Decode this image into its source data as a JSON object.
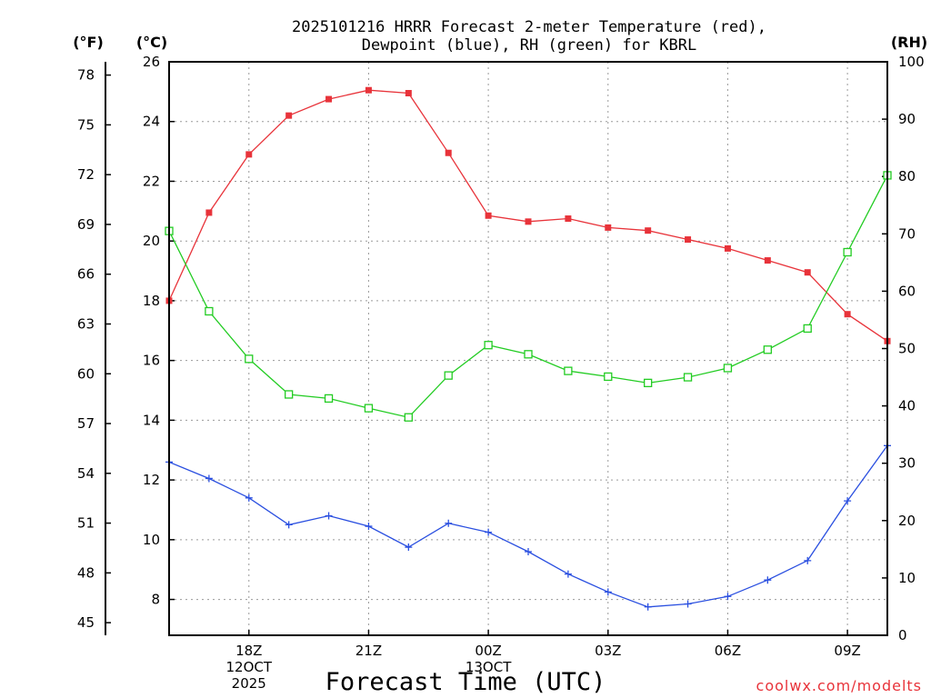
{
  "chart_data": {
    "type": "line",
    "title_line1": "2025101216 HRRR Forecast 2-meter Temperature (red),",
    "title_line2": "Dewpoint (blue), RH (green) for KBRL",
    "unit_f": "(°F)",
    "unit_c": "(°C)",
    "unit_rh": "(RH)",
    "xlabel": "Forecast Time (UTC)",
    "credit": "coolwx.com/modelts",
    "credit_color": "#e8333a",
    "x_hours": [
      0,
      1,
      2,
      3,
      4,
      5,
      6,
      7,
      8,
      9,
      10,
      11,
      12,
      13,
      14,
      15,
      16,
      17,
      18
    ],
    "x_range": [
      0,
      18
    ],
    "x_ticks": [
      {
        "hour": 2,
        "lines": [
          "18Z",
          "12OCT",
          "2025"
        ]
      },
      {
        "hour": 5,
        "lines": [
          "21Z"
        ]
      },
      {
        "hour": 8,
        "lines": [
          "00Z",
          "13OCT"
        ]
      },
      {
        "hour": 11,
        "lines": [
          "03Z"
        ]
      },
      {
        "hour": 14,
        "lines": [
          "06Z"
        ]
      },
      {
        "hour": 17,
        "lines": [
          "09Z"
        ]
      }
    ],
    "c_range": [
      6.8,
      26.0
    ],
    "c_ticks": [
      "8",
      "10",
      "12",
      "14",
      "16",
      "18",
      "20",
      "22",
      "24",
      "26"
    ],
    "f_ticks": [
      "45",
      "48",
      "51",
      "54",
      "57",
      "60",
      "63",
      "66",
      "69",
      "72",
      "75",
      "78"
    ],
    "rh_range": [
      0,
      100
    ],
    "rh_ticks": [
      "0",
      "10",
      "20",
      "30",
      "40",
      "50",
      "60",
      "70",
      "80",
      "90",
      "100"
    ],
    "grid": true,
    "series": [
      {
        "name": "Temperature",
        "axis": "c",
        "color": "#e8333a",
        "marker": "filled-square",
        "values": [
          18.0,
          20.95,
          22.9,
          24.2,
          24.75,
          25.05,
          24.95,
          22.95,
          20.85,
          20.65,
          20.75,
          20.45,
          20.35,
          20.05,
          19.75,
          19.35,
          18.95,
          17.55,
          16.65
        ]
      },
      {
        "name": "Dewpoint",
        "axis": "c",
        "color": "#2a4fe0",
        "marker": "plus",
        "values": [
          12.6,
          12.05,
          11.4,
          10.5,
          10.8,
          10.45,
          9.75,
          10.55,
          10.25,
          9.6,
          8.85,
          8.25,
          7.75,
          7.85,
          8.1,
          8.65,
          9.3,
          11.3,
          13.15
        ]
      },
      {
        "name": "RH",
        "axis": "rh",
        "color": "#22cc22",
        "marker": "open-square",
        "values": [
          70.5,
          56.5,
          48.2,
          42.0,
          41.3,
          39.6,
          38.0,
          45.3,
          50.6,
          49.0,
          46.1,
          45.1,
          44.0,
          45.0,
          46.6,
          49.8,
          53.5,
          66.8,
          80.2
        ]
      }
    ]
  }
}
